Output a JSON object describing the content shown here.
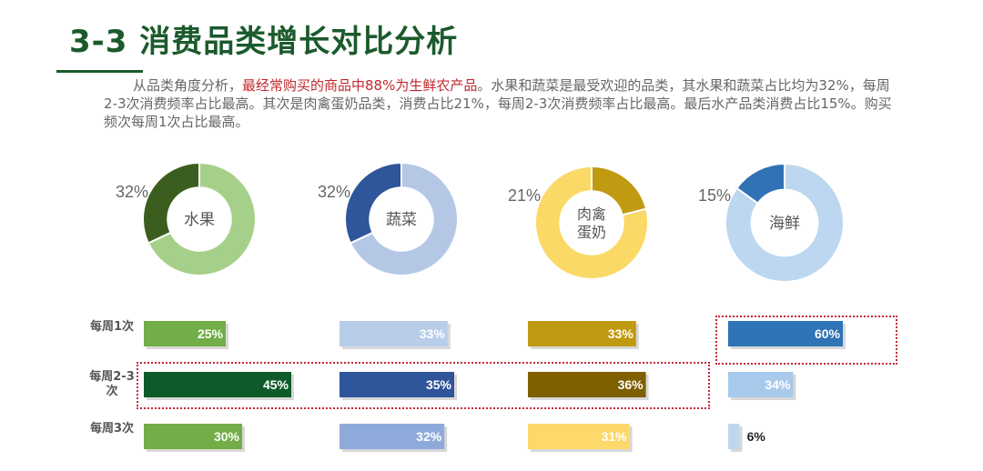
{
  "title": "3-3 消费品类增长对比分析",
  "paragraph": {
    "before": "从品类角度分析，",
    "highlight": "最经常购买的商品中88%为生鲜农产品",
    "after": "。水果和蔬菜是最受欢迎的品类，其水果和蔬菜占比均为32%，每周2-3次消费频率占比最高。其次是肉禽蛋奶品类，消费占比21%，每周2-3次消费频率占比最高。最后水产品类消费占比15%。购买频次每周1次占比最高。"
  },
  "chart_data": [
    {
      "type": "pie",
      "variant": "donut",
      "slices": [
        {
          "label": "水果",
          "value": 32,
          "value_label": "32%",
          "colors": {
            "share": "#3b5e1f",
            "rest": "#a6d08a"
          }
        },
        {
          "label": "蔬菜",
          "value": 32,
          "value_label": "32%",
          "colors": {
            "share": "#2f559a",
            "rest": "#b4c8e6"
          }
        },
        {
          "label": "肉禽蛋奶",
          "value": 21,
          "value_label": "21%",
          "colors": {
            "share": "#c09a10",
            "rest": "#fad966"
          }
        },
        {
          "label": "海鲜",
          "value": 15,
          "value_label": "15%",
          "colors": {
            "share": "#2f72b6",
            "rest": "#bcd7ef"
          }
        }
      ]
    },
    {
      "type": "bar",
      "orientation": "horizontal",
      "categories": [
        "每周1次",
        "每周2-3次",
        "每周3次"
      ],
      "series": [
        {
          "name": "水果",
          "values": [
            25,
            45,
            30
          ],
          "value_labels": [
            "25%",
            "45%",
            "30%"
          ],
          "colors": [
            "#72ad47",
            "#0f5a2a",
            "#72ad47"
          ]
        },
        {
          "name": "蔬菜",
          "values": [
            33,
            35,
            32
          ],
          "value_labels": [
            "33%",
            "35%",
            "32%"
          ],
          "colors": [
            "#b8cdea",
            "#2f559a",
            "#8eaadb"
          ]
        },
        {
          "name": "肉禽蛋奶",
          "values": [
            33,
            36,
            31
          ],
          "value_labels": [
            "33%",
            "36%",
            "31%"
          ],
          "colors": [
            "#c09a10",
            "#7e6000",
            "#fdd86a"
          ]
        },
        {
          "name": "海鲜",
          "values": [
            60,
            34,
            6
          ],
          "value_labels": [
            "60%",
            "34%",
            "6%"
          ],
          "colors": [
            "#2e74b6",
            "#a7caec",
            "#bcd7ef"
          ]
        }
      ],
      "highlights": [
        "每周2-3次: 水果/蔬菜/肉禽蛋奶",
        "每周1次: 海鲜"
      ],
      "highlight_color": "#c8283a"
    }
  ]
}
